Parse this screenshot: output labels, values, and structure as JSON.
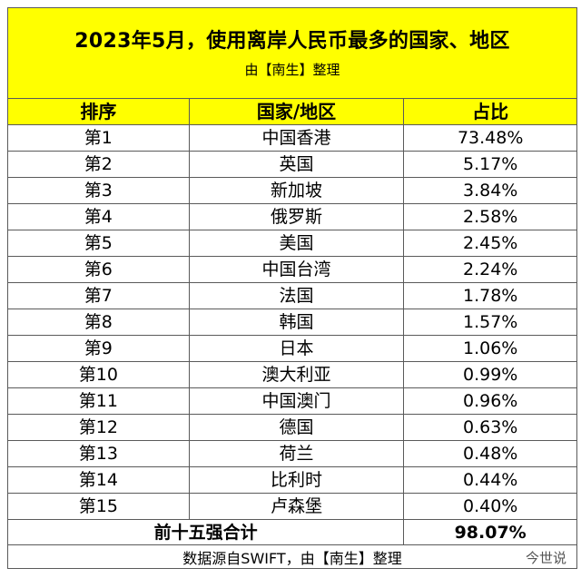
{
  "title": "2023年5月，使用离岸人民币最多的国家、地区",
  "subtitle": "由【南生】整理",
  "headers": [
    "排序",
    "国家/地区",
    "占比"
  ],
  "rows": [
    {
      "rank": "第1",
      "region": "中国香港",
      "share": "73.48%"
    },
    {
      "rank": "第2",
      "region": "英国",
      "share": "5.17%"
    },
    {
      "rank": "第3",
      "region": "新加坡",
      "share": "3.84%"
    },
    {
      "rank": "第4",
      "region": "俄罗斯",
      "share": "2.58%"
    },
    {
      "rank": "第5",
      "region": "美国",
      "share": "2.45%"
    },
    {
      "rank": "第6",
      "region": "中国台湾",
      "share": "2.24%"
    },
    {
      "rank": "第7",
      "region": "法国",
      "share": "1.78%"
    },
    {
      "rank": "第8",
      "region": "韩国",
      "share": "1.57%"
    },
    {
      "rank": "第9",
      "region": "日本",
      "share": "1.06%"
    },
    {
      "rank": "第10",
      "region": "澳大利亚",
      "share": "0.99%"
    },
    {
      "rank": "第11",
      "region": "中国澳门",
      "share": "0.96%"
    },
    {
      "rank": "第12",
      "region": "德国",
      "share": "0.63%"
    },
    {
      "rank": "第13",
      "region": "荷兰",
      "share": "0.48%"
    },
    {
      "rank": "第14",
      "region": "比利时",
      "share": "0.44%"
    },
    {
      "rank": "第15",
      "region": "卢森堡",
      "share": "0.40%"
    }
  ],
  "total": {
    "label": "前十五强合计",
    "value": "98.07%"
  },
  "footer": "数据源自SWIFT，由【南生】整理",
  "watermark": "今世说",
  "colors": {
    "header_bg": "#ffff00",
    "border": "#5a5a5a"
  }
}
